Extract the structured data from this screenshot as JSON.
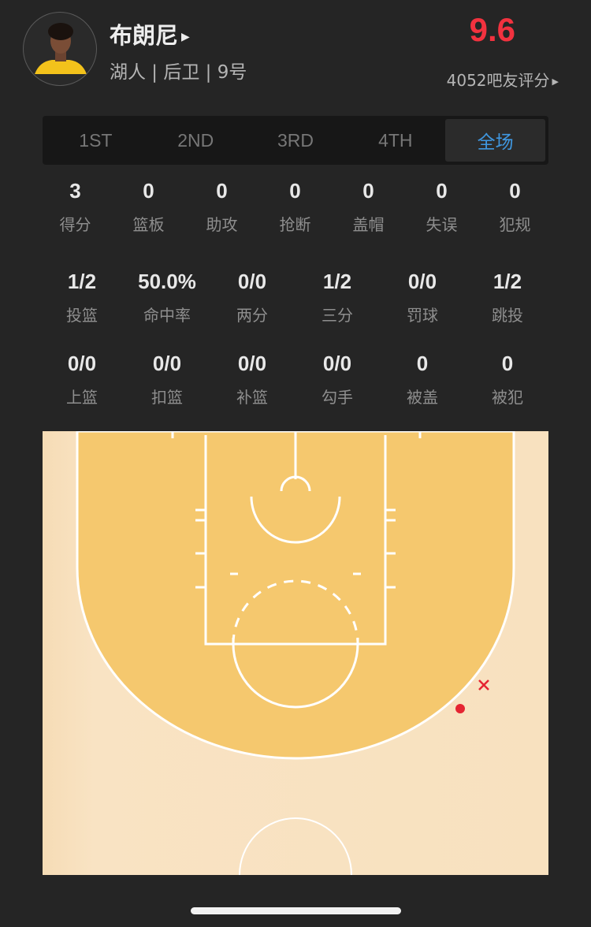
{
  "player": {
    "name": "布朗尼",
    "info": "湖人 | 后卫 | 9号",
    "rating": "9.6",
    "votes": "4052吧友评分"
  },
  "tabs": [
    {
      "label": "1ST"
    },
    {
      "label": "2ND"
    },
    {
      "label": "3RD"
    },
    {
      "label": "4TH"
    },
    {
      "label": "全场",
      "active": true
    }
  ],
  "stats_main": [
    {
      "value": "3",
      "label": "得分"
    },
    {
      "value": "0",
      "label": "篮板"
    },
    {
      "value": "0",
      "label": "助攻"
    },
    {
      "value": "0",
      "label": "抢断"
    },
    {
      "value": "0",
      "label": "盖帽"
    },
    {
      "value": "0",
      "label": "失误"
    },
    {
      "value": "0",
      "label": "犯规"
    }
  ],
  "stats_shooting": [
    {
      "value": "1/2",
      "label": "投篮"
    },
    {
      "value": "50.0%",
      "label": "命中率"
    },
    {
      "value": "0/0",
      "label": "两分"
    },
    {
      "value": "1/2",
      "label": "三分"
    },
    {
      "value": "0/0",
      "label": "罚球"
    },
    {
      "value": "1/2",
      "label": "跳投"
    }
  ],
  "stats_shot_types": [
    {
      "value": "0/0",
      "label": "上篮"
    },
    {
      "value": "0/0",
      "label": "扣篮"
    },
    {
      "value": "0/0",
      "label": "补篮"
    },
    {
      "value": "0/0",
      "label": "勾手"
    },
    {
      "value": "0",
      "label": "被盖"
    },
    {
      "value": "0",
      "label": "被犯"
    }
  ],
  "shot_chart": {
    "shots": [
      {
        "result": "made",
        "marker": "dot"
      },
      {
        "result": "missed",
        "marker": "x"
      }
    ]
  },
  "colors": {
    "rating": "#f2323f",
    "active_tab": "#3f97e0",
    "paint": "#f5c86e",
    "court": "#f8e1bf",
    "shot": "#e52532"
  }
}
